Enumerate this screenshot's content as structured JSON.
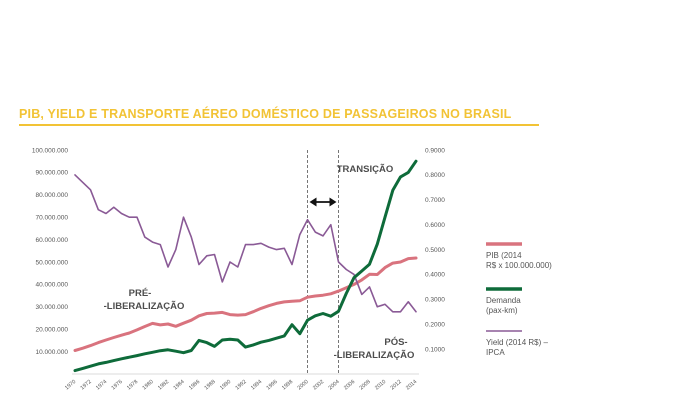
{
  "title": "PIB, YIELD E TRANSPORTE AÉREO DOMÉSTICO DE PASSAGEIROS NO BRASIL",
  "chart_data": {
    "type": "line",
    "title": "PIB, YIELD E TRANSPORTE AÉREO DOMÉSTICO DE PASSAGEIROS NO BRASIL",
    "x": [
      1970,
      1971,
      1972,
      1973,
      1974,
      1975,
      1976,
      1977,
      1978,
      1979,
      1980,
      1981,
      1982,
      1983,
      1984,
      1985,
      1986,
      1987,
      1988,
      1989,
      1990,
      1991,
      1992,
      1993,
      1994,
      1995,
      1996,
      1997,
      1998,
      1999,
      2000,
      2001,
      2002,
      2003,
      2004,
      2005,
      2006,
      2007,
      2008,
      2009,
      2010,
      2011,
      2012,
      2013,
      2014
    ],
    "x_tick_labels": [
      "1970",
      "1972",
      "1974",
      "1976",
      "1978",
      "1980",
      "1982",
      "1984",
      "1986",
      "1988",
      "1990",
      "1992",
      "1994",
      "1996",
      "1998",
      "2000",
      "2002",
      "2004",
      "2006",
      "2008",
      "2010",
      "2012",
      "2014"
    ],
    "y_left": {
      "ylim": [
        0,
        100000000
      ],
      "ticks": [
        "10.000.000",
        "20.000.000",
        "30.000.000",
        "40.000.000",
        "50.000.000",
        "60.000.000",
        "70.000.000",
        "80.000.000",
        "90.000.000",
        "100.000.000"
      ]
    },
    "y_right": {
      "ylim": [
        0,
        0.9
      ],
      "ticks": [
        "0.1000",
        "0.2000",
        "0.3000",
        "0.4000",
        "0.5000",
        "0.6000",
        "0.7000",
        "0.8000",
        "0.9000"
      ]
    },
    "series": [
      {
        "name": "PIB (2014 R$ x 100.000.000)",
        "legend": [
          "PIB (2014",
          "R$ x 100.000.000)"
        ],
        "axis": "left",
        "color": "#d9737e",
        "values": [
          10500000,
          11500000,
          12700000,
          14000000,
          15200000,
          16300000,
          17300000,
          18300000,
          19700000,
          21200000,
          22600000,
          21900000,
          22300000,
          21300000,
          22700000,
          24000000,
          26000000,
          27000000,
          27200000,
          27500000,
          26500000,
          26300000,
          26500000,
          27800000,
          29300000,
          30500000,
          31500000,
          32200000,
          32500000,
          32700000,
          34300000,
          34800000,
          35200000,
          35800000,
          37000000,
          38500000,
          40000000,
          42000000,
          44500000,
          44400000,
          47500000,
          49500000,
          50000000,
          51500000,
          51800000
        ]
      },
      {
        "name": "Demanda (pax-km)",
        "legend": [
          "Demanda",
          "(pax-km)"
        ],
        "axis": "left",
        "color": "#0e6b3a",
        "values": [
          1500000,
          2500000,
          3500000,
          4500000,
          5200000,
          6000000,
          6800000,
          7500000,
          8200000,
          9000000,
          9700000,
          10400000,
          10800000,
          10200000,
          9500000,
          10500000,
          15000000,
          14000000,
          12300000,
          15200000,
          15500000,
          15200000,
          12000000,
          13000000,
          14200000,
          15000000,
          16000000,
          17000000,
          22000000,
          18000000,
          24000000,
          26000000,
          27000000,
          25800000,
          28000000,
          36000000,
          43000000,
          46000000,
          49000000,
          58000000,
          70000000,
          82000000,
          88000000,
          90000000,
          95000000
        ]
      },
      {
        "name": "Yield (2014 R$) – IPCA",
        "legend": [
          "Yield (2014 R$) –",
          "IPCA"
        ],
        "axis": "right",
        "color": "#8a5a96",
        "values": [
          0.8,
          0.77,
          0.74,
          0.66,
          0.645,
          0.67,
          0.645,
          0.63,
          0.63,
          0.55,
          0.53,
          0.52,
          0.43,
          0.5,
          0.63,
          0.55,
          0.44,
          0.475,
          0.48,
          0.37,
          0.45,
          0.43,
          0.52,
          0.52,
          0.525,
          0.51,
          0.5,
          0.505,
          0.44,
          0.56,
          0.62,
          0.57,
          0.555,
          0.6,
          0.45,
          0.42,
          0.4,
          0.32,
          0.35,
          0.27,
          0.28,
          0.25,
          0.25,
          0.29,
          0.25
        ]
      }
    ],
    "vertical_lines": [
      2000,
      2004
    ],
    "annotations": {
      "transition": "TRANSIÇÃO",
      "pre": [
        "PRÉ-",
        "-LIBERALIZAÇÃO"
      ],
      "pos": [
        "PÓS-",
        "-LIBERALIZAÇÃO"
      ]
    },
    "legend_position": "right"
  }
}
